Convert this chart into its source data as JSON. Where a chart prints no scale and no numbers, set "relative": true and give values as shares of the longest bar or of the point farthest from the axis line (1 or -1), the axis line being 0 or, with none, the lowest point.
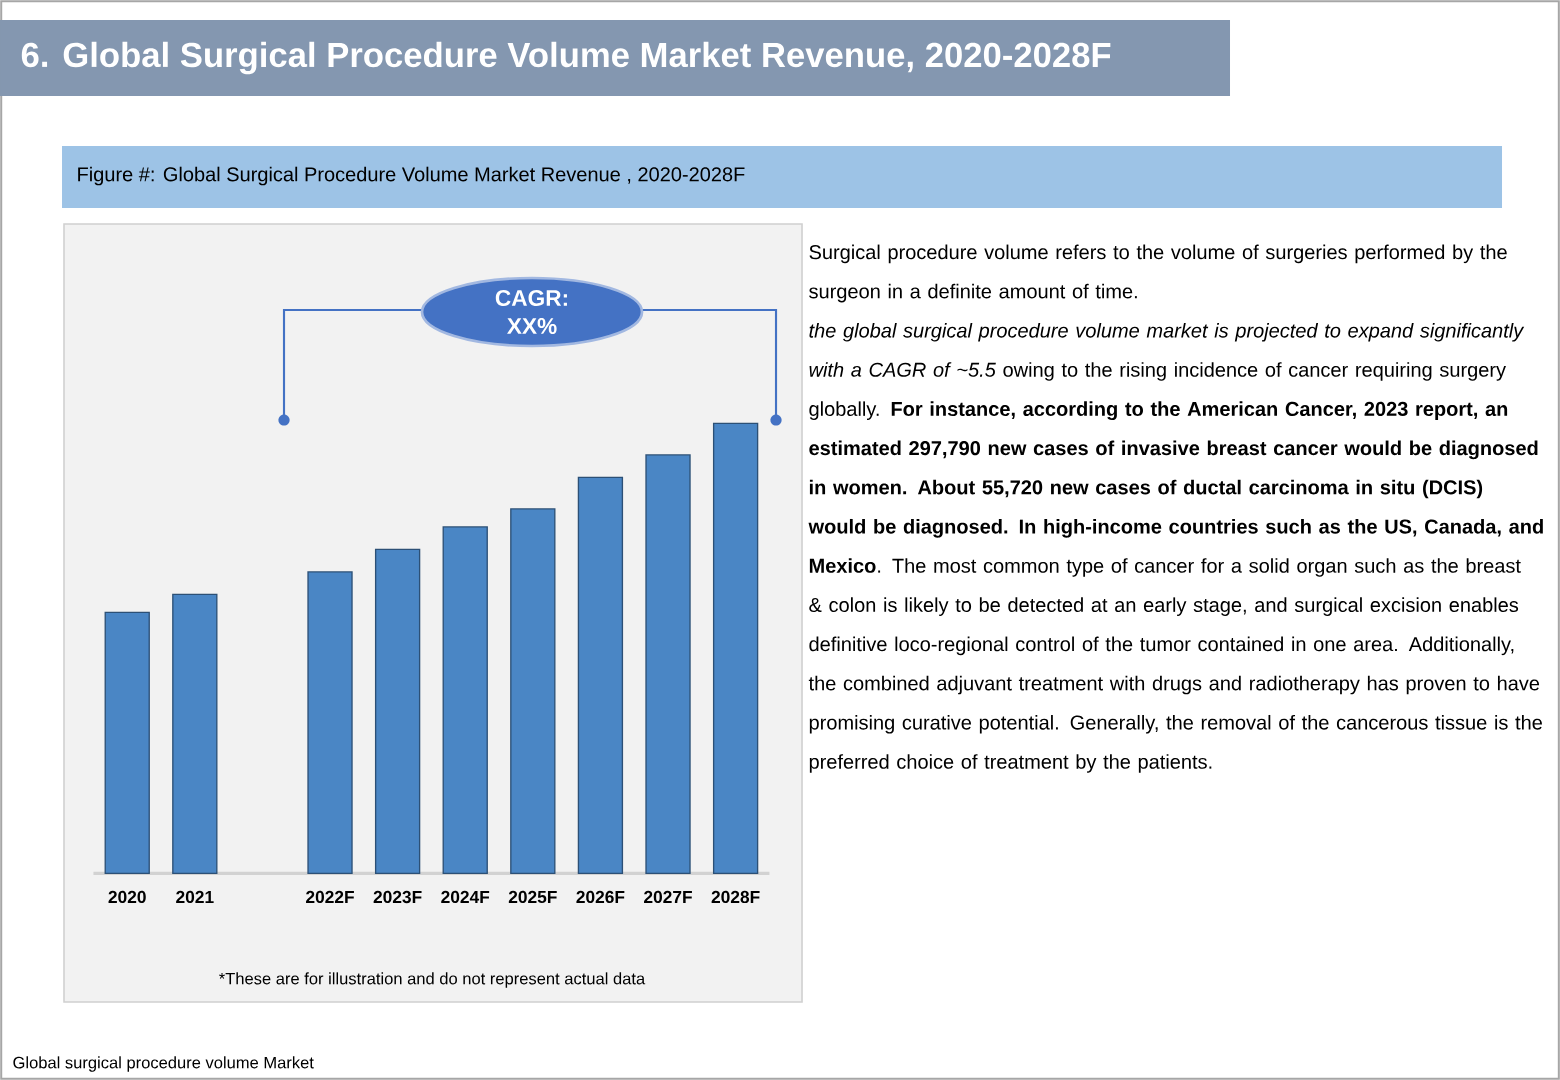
{
  "chart_data": {
    "type": "bar",
    "title": "6. Global Surgical Procedure Volume Market Revenue, 2020-2028F",
    "subtitle": "Figure #: Global Surgical Procedure Volume Market Revenue , 2020-2028F",
    "categories": [
      "2020",
      "2021",
      null,
      "2022F",
      "2023F",
      "2024F",
      "2025F",
      "2026F",
      "2027F",
      "2028F"
    ],
    "values": [
      0.58,
      0.62,
      null,
      0.67,
      0.72,
      0.77,
      0.81,
      0.88,
      0.93,
      1
    ],
    "color": "#4a86c5",
    "relative": true,
    "annotations": [
      "CAGR: XX%",
      "Surgical procedure volume refers to the volume of surgeries performed by the surgeon in a definite amount of time.",
      "*the global surgical procedure volume market is projected to expand significantly with a CAGR of ~5.5* owing to the rising incidence of cancer requiring surgery globally. **For instance, according to the American Cancer, 2023 report, an estimated 297,790 new cases of invasive breast cancer would be diagnosed in women. About 55,720 new cases of ductal carcinoma in situ (DCIS) would be diagnosed. In high-income countries such as the US, Canada, and Mexico**. The most common type of cancer for a solid organ such as the breast & colon is likely to be detected at an early stage, and surgical excision enables definitive loco-regional control of the tumor contained in one area. Additionally, the combined adjuvant treatment with drugs and radiotherapy has proven to have promising curative potential. Generally, the removal of the cancerous tissue is the preferred choice of treatment by the patients.",
      "*These are for illustration and do not represent actual data",
      "Global surgical procedure volume Market"
    ]
  }
}
